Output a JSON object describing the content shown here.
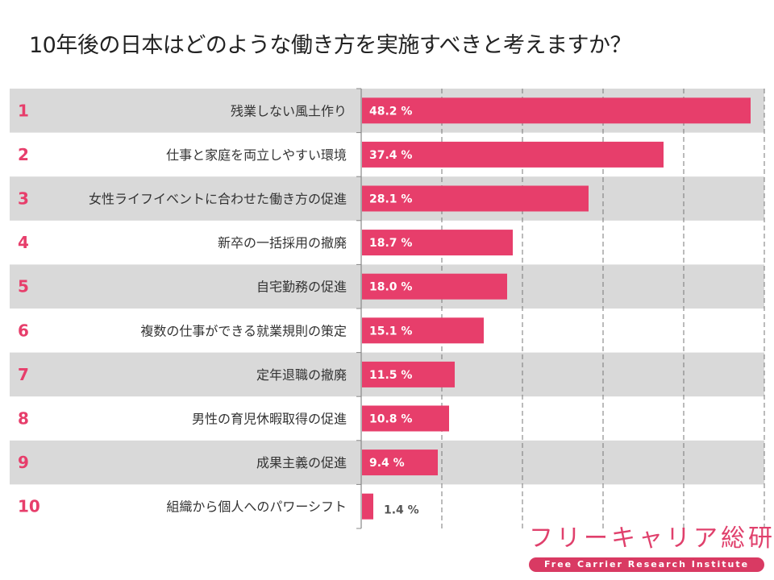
{
  "title": "10年後の日本はどのような働き方を実施すべきと考えますか？",
  "colors": {
    "bar": "#e73e6b",
    "band": "#d9d9d9",
    "rank": "#e73e6b"
  },
  "chart_data": {
    "type": "bar",
    "orientation": "horizontal",
    "title": "10年後の日本はどのような働き方を実施すべきと考えますか？",
    "xlabel": "",
    "ylabel": "",
    "xlim": [
      0,
      50
    ],
    "grid": true,
    "ranks": [
      "1",
      "2",
      "3",
      "4",
      "5",
      "6",
      "7",
      "8",
      "9",
      "10"
    ],
    "categories": [
      "残業しない風土作り",
      "仕事と家庭を両立しやすい環境",
      "女性ライフイベントに合わせた働き方の促進",
      "新卒の一括採用の撤廃",
      "自宅勤務の促進",
      "複数の仕事ができる就業規則の策定",
      "定年退職の撤廃",
      "男性の育児休暇取得の促進",
      "成果主義の促進",
      "組織から個人へのパワーシフト"
    ],
    "values": [
      48.2,
      37.4,
      28.1,
      18.7,
      18.0,
      15.1,
      11.5,
      10.8,
      9.4,
      1.4
    ],
    "value_labels": [
      "48.2 %",
      "37.4 %",
      "28.1 %",
      "18.7 %",
      "18.0 %",
      "15.1 %",
      "11.5 %",
      "10.8 %",
      "9.4 %",
      "1.4 %"
    ]
  },
  "logo": {
    "jp": "フリーキャリア総研",
    "en": "Free Carrier Research Institute"
  }
}
